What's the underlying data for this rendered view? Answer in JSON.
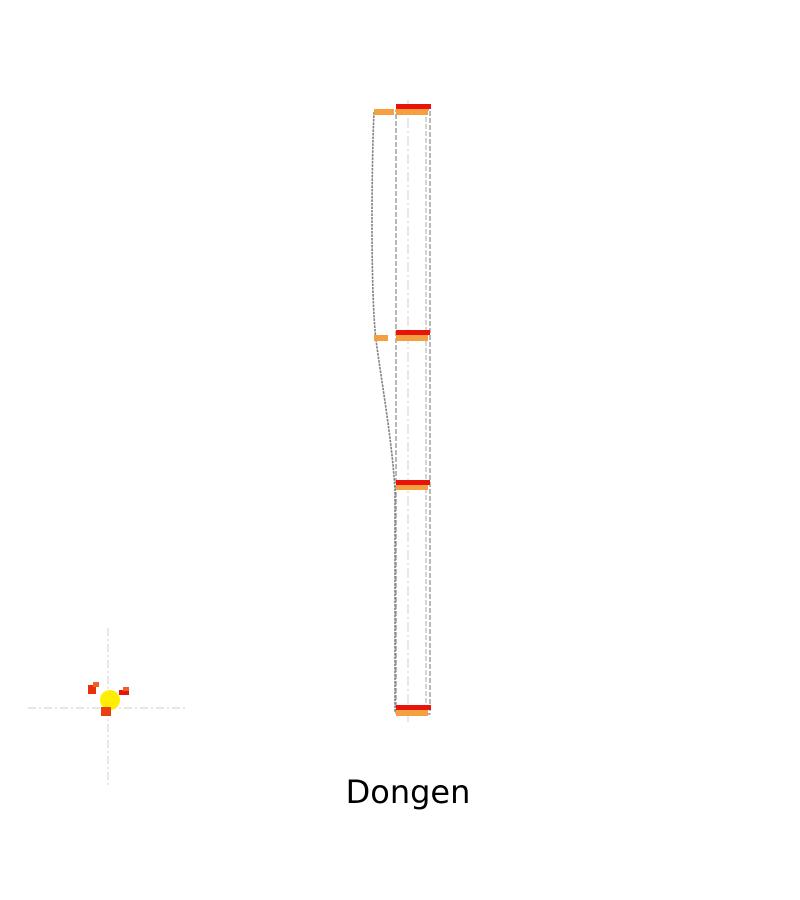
{
  "caption": "Dongen",
  "colors": {
    "background": "#ffffff",
    "guide": "#d8d8d8",
    "outline": "#808080",
    "marker_red": "#e8140a",
    "marker_orange": "#f4a040",
    "marker_yellow": "#ffee00"
  }
}
